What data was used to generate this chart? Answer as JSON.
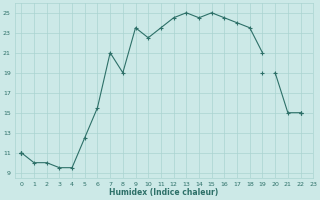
{
  "xlabel": "Humidex (Indice chaleur)",
  "bg_color": "#cce9e7",
  "grid_color": "#aad4d1",
  "line_color": "#2d7068",
  "line1_y": [
    11,
    10,
    10,
    9.5,
    9.5,
    12.5,
    15.5,
    21,
    19,
    23.5,
    22.5,
    23.5,
    24.5,
    25,
    24.5,
    25,
    24.5,
    24,
    23.5,
    21,
    null,
    null,
    null,
    null
  ],
  "line2_y": [
    11,
    null,
    null,
    null,
    null,
    null,
    null,
    null,
    null,
    null,
    null,
    null,
    null,
    null,
    null,
    null,
    null,
    null,
    null,
    null,
    19,
    15,
    15,
    null
  ],
  "line3_y": [
    11,
    null,
    null,
    null,
    null,
    null,
    null,
    null,
    null,
    null,
    null,
    null,
    null,
    null,
    null,
    null,
    null,
    null,
    null,
    null,
    null,
    null,
    15,
    null
  ],
  "line4_y": [
    11,
    null,
    null,
    null,
    null,
    null,
    null,
    null,
    null,
    null,
    null,
    null,
    null,
    null,
    null,
    null,
    null,
    null,
    null,
    19,
    null,
    null,
    15,
    null
  ],
  "xlim": [
    -0.5,
    23
  ],
  "ylim": [
    8.5,
    26
  ],
  "yticks": [
    9,
    11,
    13,
    15,
    17,
    19,
    21,
    23,
    25
  ],
  "xticks": [
    0,
    1,
    2,
    3,
    4,
    5,
    6,
    7,
    8,
    9,
    10,
    11,
    12,
    13,
    14,
    15,
    16,
    17,
    18,
    19,
    20,
    21,
    22,
    23
  ]
}
